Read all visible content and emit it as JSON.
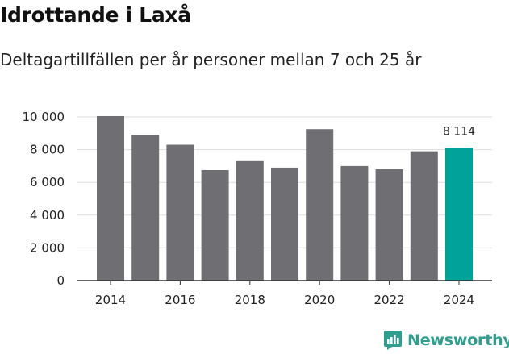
{
  "title": "Idrottande i Laxå",
  "subtitle": "Deltagartillfällen per år personer mellan 7 och 25 år",
  "brand": {
    "name": "Newsworthy",
    "icon": "newsworthy-logo-icon",
    "color": "#2e9e8f"
  },
  "chart_data": {
    "type": "bar",
    "categories": [
      "2014",
      "2015",
      "2016",
      "2017",
      "2018",
      "2019",
      "2020",
      "2021",
      "2022",
      "2023",
      "2024"
    ],
    "values": [
      10050,
      8900,
      8300,
      6750,
      7300,
      6900,
      9250,
      7000,
      6800,
      7900,
      8114
    ],
    "ylim": [
      0,
      10000
    ],
    "yticks": [
      0,
      2000,
      4000,
      6000,
      8000,
      10000
    ],
    "ytick_labels": [
      "0",
      "2 000",
      "4 000",
      "6 000",
      "8 000",
      "10 000"
    ],
    "xtick_labels": [
      "2014",
      "",
      "2016",
      "",
      "2018",
      "",
      "2020",
      "",
      "2022",
      "",
      "2024"
    ],
    "highlight_index": 10,
    "highlight_label": "8 114",
    "colors": {
      "bar": "#6f6e73",
      "highlight": "#00a39a",
      "grid": "#dddddd",
      "axis": "#333333"
    },
    "grid": true,
    "legend": "none",
    "xlabel": "",
    "ylabel": ""
  }
}
